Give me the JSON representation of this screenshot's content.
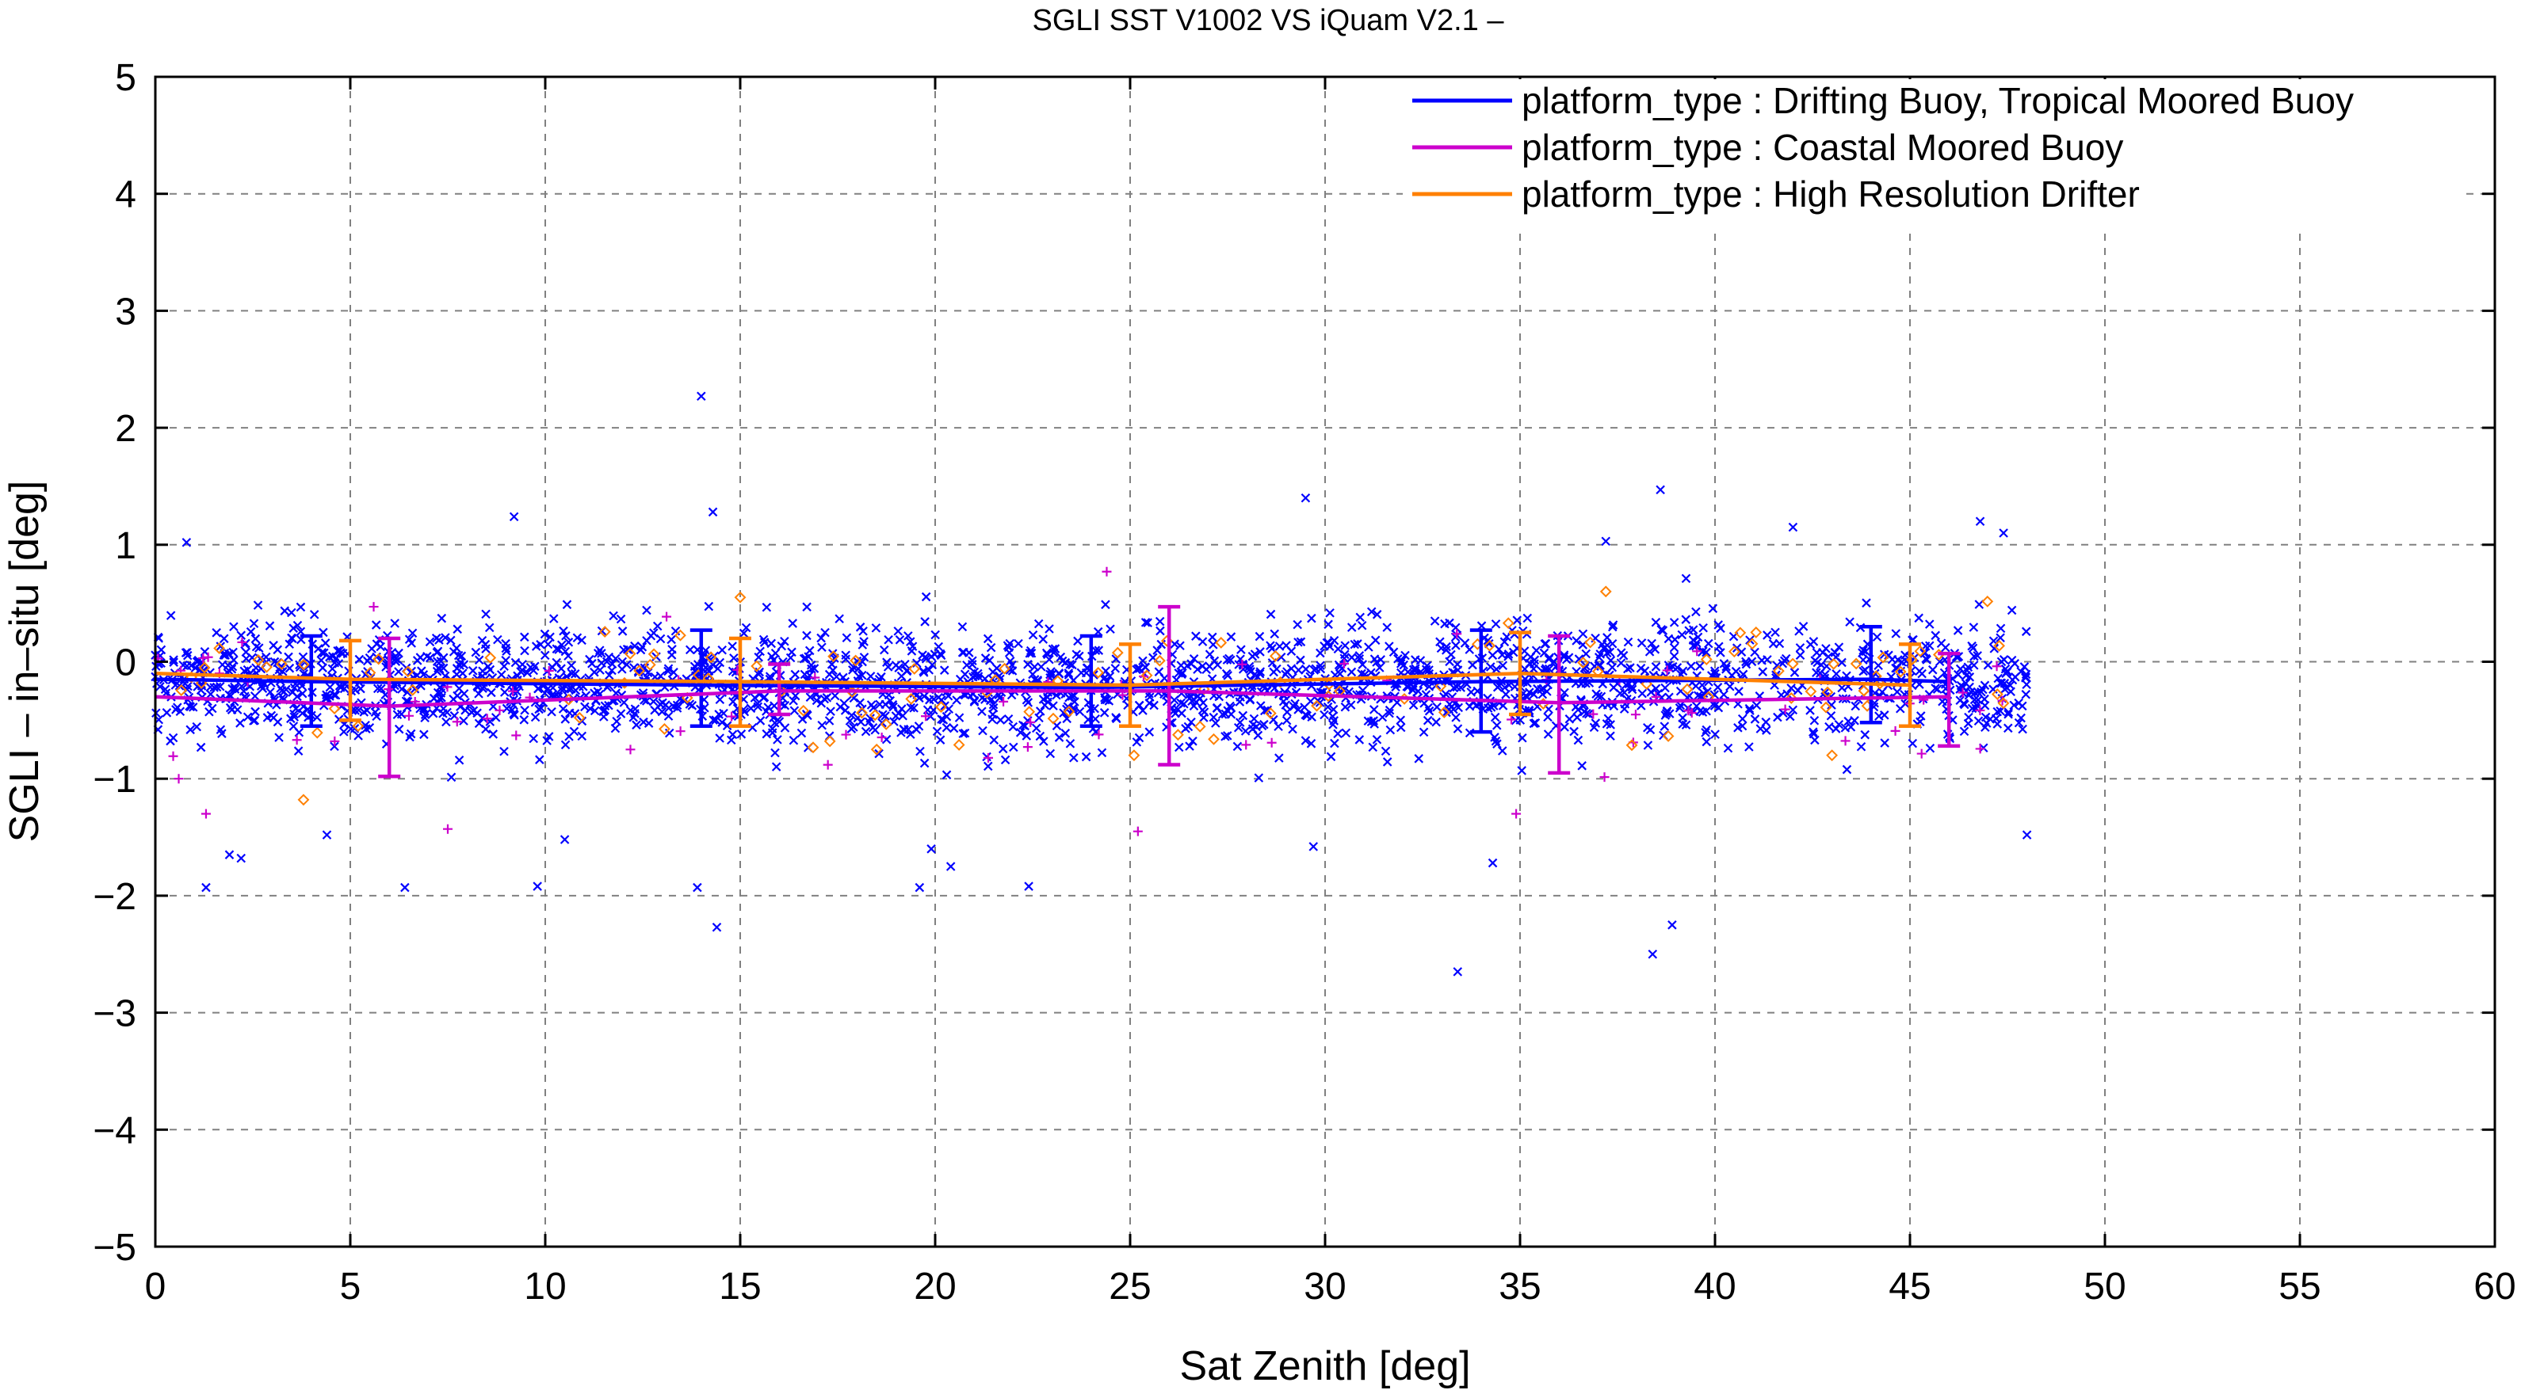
{
  "chart_data": {
    "type": "scatter",
    "title": "SGLI SST V1002 VS iQuam V2.1  –",
    "xlabel": "Sat Zenith [deg]",
    "ylabel": "SGLI – in–situ [deg]",
    "xlim": [
      0,
      60
    ],
    "ylim": [
      -5,
      5
    ],
    "xticks": [
      0,
      5,
      10,
      15,
      20,
      25,
      30,
      35,
      40,
      45,
      50,
      55,
      60
    ],
    "yticks": [
      -5,
      -4,
      -3,
      -2,
      -1,
      0,
      1,
      2,
      3,
      4,
      5
    ],
    "xtick_labels": [
      "0",
      "5",
      "10",
      "15",
      "20",
      "25",
      "30",
      "35",
      "40",
      "45",
      "50",
      "55",
      "60"
    ],
    "ytick_labels": [
      "−5",
      "−4",
      "−3",
      "−2",
      "−1",
      "0",
      "1",
      "2",
      "3",
      "4",
      "5"
    ],
    "grid": true,
    "legend_position": "top-right",
    "series": [
      {
        "name": "platform_type : Drifting Buoy, Tropical Moored Buoy",
        "color": "#0000ff",
        "marker": "x",
        "mean_line": {
          "x": [
            0,
            4,
            14,
            24,
            34,
            44,
            46
          ],
          "y": [
            -0.15,
            -0.17,
            -0.2,
            -0.22,
            -0.17,
            -0.15,
            -0.17
          ]
        },
        "error_bars": [
          {
            "x": 4,
            "mean": -0.17,
            "low": -0.55,
            "high": 0.22
          },
          {
            "x": 14,
            "mean": -0.2,
            "low": -0.55,
            "high": 0.27
          },
          {
            "x": 24,
            "mean": -0.22,
            "low": -0.55,
            "high": 0.22
          },
          {
            "x": 34,
            "mean": -0.17,
            "low": -0.6,
            "high": 0.27
          },
          {
            "x": 44,
            "mean": -0.15,
            "low": -0.52,
            "high": 0.3
          }
        ],
        "outliers": [
          [
            14,
            2.27
          ],
          [
            14.3,
            1.28
          ],
          [
            9.2,
            1.24
          ],
          [
            29.5,
            1.4
          ],
          [
            38.6,
            1.47
          ],
          [
            46.8,
            1.2
          ],
          [
            47.4,
            1.1
          ],
          [
            42,
            1.15
          ],
          [
            0.8,
            1.02
          ],
          [
            37.2,
            1.03
          ],
          [
            14.4,
            -2.27
          ],
          [
            33.4,
            -2.65
          ],
          [
            38.9,
            -2.25
          ],
          [
            38.4,
            -2.5
          ],
          [
            1.3,
            -1.93
          ],
          [
            6.4,
            -1.93
          ],
          [
            9.8,
            -1.92
          ],
          [
            13.9,
            -1.93
          ],
          [
            19.6,
            -1.93
          ],
          [
            22.4,
            -1.92
          ],
          [
            20.4,
            -1.75
          ],
          [
            19.9,
            -1.6
          ],
          [
            1.9,
            -1.65
          ],
          [
            2.2,
            -1.68
          ],
          [
            29.7,
            -1.58
          ],
          [
            48,
            -1.48
          ],
          [
            10.5,
            -1.52
          ],
          [
            4.4,
            -1.48
          ],
          [
            34.3,
            -1.72
          ]
        ]
      },
      {
        "name": "platform_type : Coastal Moored Buoy",
        "color": "#cc00cc",
        "marker": "+",
        "mean_line": {
          "x": [
            0,
            6,
            16,
            26,
            36,
            46
          ],
          "y": [
            -0.3,
            -0.38,
            -0.25,
            -0.25,
            -0.35,
            -0.3
          ]
        },
        "error_bars": [
          {
            "x": 6,
            "mean": -0.38,
            "low": -0.98,
            "high": 0.2
          },
          {
            "x": 16,
            "mean": -0.25,
            "low": -0.45,
            "high": -0.02
          },
          {
            "x": 26,
            "mean": -0.25,
            "low": -0.88,
            "high": 0.47
          },
          {
            "x": 36,
            "mean": -0.35,
            "low": -0.95,
            "high": 0.22
          },
          {
            "x": 46,
            "mean": -0.3,
            "low": -0.72,
            "high": 0.07
          }
        ],
        "outliers": [
          [
            0.6,
            -1.0
          ],
          [
            1.3,
            -1.3
          ],
          [
            7.5,
            -1.43
          ],
          [
            25.2,
            -1.45
          ],
          [
            34.9,
            -1.3
          ],
          [
            24.4,
            0.77
          ],
          [
            5.6,
            0.47
          ],
          [
            4.6,
            -0.68
          ]
        ]
      },
      {
        "name": "platform_type : High Resolution Drifter",
        "color": "#ff8000",
        "marker": "diamond",
        "mean_line": {
          "x": [
            0,
            5,
            15,
            25,
            35,
            45
          ],
          "y": [
            -0.1,
            -0.15,
            -0.17,
            -0.2,
            -0.1,
            -0.2
          ]
        },
        "error_bars": [
          {
            "x": 5,
            "mean": -0.15,
            "low": -0.5,
            "high": 0.18
          },
          {
            "x": 15,
            "mean": -0.17,
            "low": -0.55,
            "high": 0.2
          },
          {
            "x": 25,
            "mean": -0.2,
            "low": -0.55,
            "high": 0.15
          },
          {
            "x": 35,
            "mean": -0.1,
            "low": -0.45,
            "high": 0.25
          },
          {
            "x": 45,
            "mean": -0.2,
            "low": -0.55,
            "high": 0.15
          }
        ],
        "outliers": [
          [
            3.8,
            -1.18
          ],
          [
            15,
            0.55
          ],
          [
            17.3,
            -0.68
          ],
          [
            18.5,
            -0.75
          ],
          [
            25.1,
            -0.8
          ],
          [
            37.2,
            0.6
          ],
          [
            43,
            -0.8
          ],
          [
            34.7,
            0.33
          ],
          [
            5.2,
            -0.55
          ]
        ]
      }
    ]
  }
}
